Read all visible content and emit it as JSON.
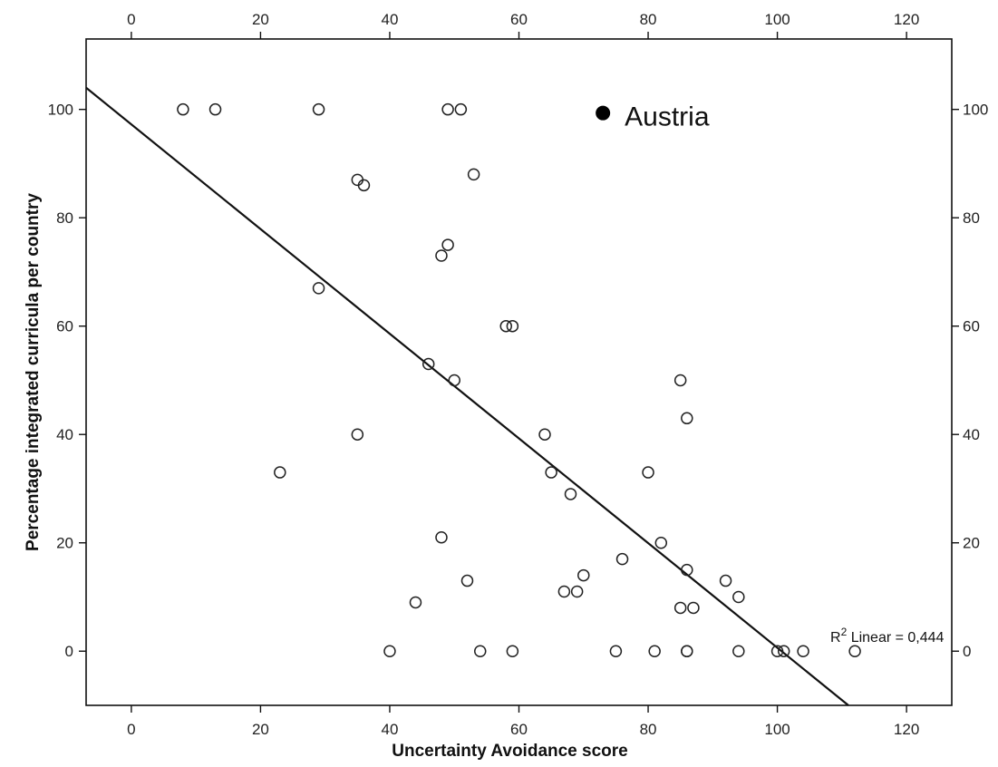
{
  "chart_data": {
    "type": "scatter",
    "xlabel": "Uncertainty Avoidance score",
    "ylabel": "Percentage integrated curricula per country",
    "xlim": [
      -7,
      127
    ],
    "ylim": [
      -10,
      113
    ],
    "x_ticks": [
      0,
      20,
      40,
      60,
      80,
      100,
      120
    ],
    "y_ticks": [
      0,
      20,
      40,
      60,
      80,
      100
    ],
    "grid": false,
    "points": [
      {
        "x": 8,
        "y": 100
      },
      {
        "x": 13,
        "y": 100
      },
      {
        "x": 29,
        "y": 100
      },
      {
        "x": 49,
        "y": 100
      },
      {
        "x": 51,
        "y": 100
      },
      {
        "x": 35,
        "y": 87
      },
      {
        "x": 36,
        "y": 86
      },
      {
        "x": 53,
        "y": 88
      },
      {
        "x": 49,
        "y": 75
      },
      {
        "x": 48,
        "y": 73
      },
      {
        "x": 29,
        "y": 67
      },
      {
        "x": 58,
        "y": 60
      },
      {
        "x": 59,
        "y": 60
      },
      {
        "x": 46,
        "y": 53
      },
      {
        "x": 50,
        "y": 50
      },
      {
        "x": 85,
        "y": 50
      },
      {
        "x": 86,
        "y": 43
      },
      {
        "x": 35,
        "y": 40
      },
      {
        "x": 64,
        "y": 40
      },
      {
        "x": 23,
        "y": 33
      },
      {
        "x": 65,
        "y": 33
      },
      {
        "x": 80,
        "y": 33
      },
      {
        "x": 68,
        "y": 29
      },
      {
        "x": 48,
        "y": 21
      },
      {
        "x": 82,
        "y": 20
      },
      {
        "x": 76,
        "y": 17
      },
      {
        "x": 86,
        "y": 15
      },
      {
        "x": 70,
        "y": 14
      },
      {
        "x": 52,
        "y": 13
      },
      {
        "x": 92,
        "y": 13
      },
      {
        "x": 67,
        "y": 11
      },
      {
        "x": 69,
        "y": 11
      },
      {
        "x": 94,
        "y": 10
      },
      {
        "x": 44,
        "y": 9
      },
      {
        "x": 85,
        "y": 8
      },
      {
        "x": 87,
        "y": 8
      },
      {
        "x": 40,
        "y": 0
      },
      {
        "x": 54,
        "y": 0
      },
      {
        "x": 59,
        "y": 0
      },
      {
        "x": 75,
        "y": 0
      },
      {
        "x": 81,
        "y": 0
      },
      {
        "x": 86,
        "y": 0
      },
      {
        "x": 86,
        "y": 0
      },
      {
        "x": 94,
        "y": 0
      },
      {
        "x": 100,
        "y": 0
      },
      {
        "x": 101,
        "y": 0
      },
      {
        "x": 104,
        "y": 0
      },
      {
        "x": 112,
        "y": 0
      }
    ],
    "highlight": {
      "label": "Austria",
      "x": 73,
      "y": 100
    },
    "fit_line": {
      "type": "linear",
      "x": [
        -7,
        111
      ],
      "y": [
        104,
        -10
      ]
    },
    "r2_label": {
      "prefix": "R",
      "superscript": "2",
      "text": " Linear = 0,444"
    }
  }
}
